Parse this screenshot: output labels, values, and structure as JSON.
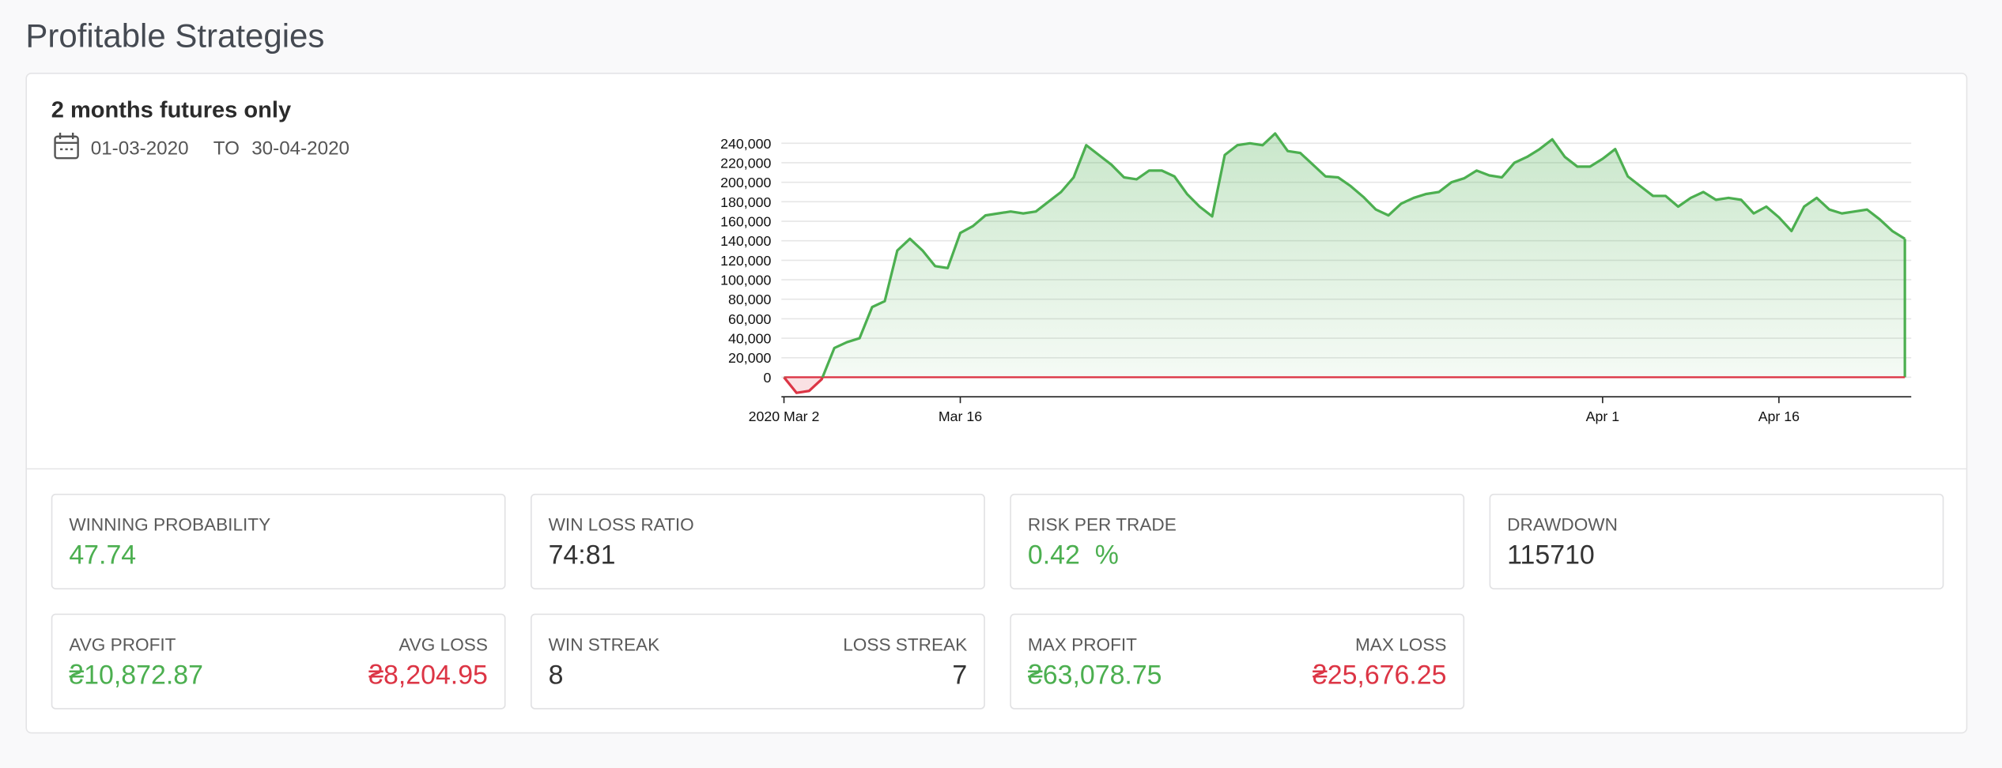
{
  "header": {
    "title": "Profitable Strategies"
  },
  "strategy": {
    "name": "2 months futures only",
    "date_from": "01-03-2020",
    "date_sep": "TO",
    "date_to": "30-04-2020"
  },
  "chart_data": {
    "type": "area",
    "categories": [
      "2020 Mar 2",
      null,
      null,
      null,
      null,
      null,
      null,
      null,
      null,
      null,
      null,
      null,
      null,
      null,
      "Mar 16",
      null,
      null,
      null,
      null,
      null,
      null,
      null,
      null,
      null,
      null,
      null,
      null,
      null,
      null,
      null,
      null,
      null,
      null,
      null,
      null,
      null,
      null,
      null,
      null,
      null,
      null,
      null,
      null,
      null,
      null,
      null,
      null,
      null,
      null,
      null,
      null,
      null,
      null,
      null,
      null,
      null,
      null,
      null,
      null,
      null,
      null,
      null,
      null,
      null,
      null,
      "Apr 1",
      null,
      null,
      null,
      null,
      null,
      null,
      null,
      null,
      null,
      null,
      null,
      null,
      null,
      "Apr 16",
      null,
      null,
      null,
      null,
      null,
      null,
      null,
      null,
      null,
      null
    ],
    "series": [
      {
        "color": "#4caf50",
        "negative_color": "#dc3545",
        "values": [
          0,
          -16000,
          -14000,
          -2000,
          30000,
          36000,
          40000,
          72000,
          78000,
          130000,
          142000,
          130000,
          114000,
          112000,
          148000,
          155000,
          166000,
          168000,
          170000,
          168000,
          170000,
          180000,
          190000,
          205000,
          238000,
          228000,
          218000,
          205000,
          203000,
          212000,
          212000,
          206000,
          188000,
          175000,
          165000,
          228000,
          238000,
          240000,
          238000,
          250000,
          232000,
          230000,
          218000,
          206000,
          205000,
          196000,
          185000,
          172000,
          166000,
          178000,
          184000,
          188000,
          190000,
          200000,
          204000,
          212000,
          207000,
          205000,
          220000,
          226000,
          234000,
          244000,
          226000,
          216000,
          216000,
          224000,
          234000,
          206000,
          196000,
          186000,
          186000,
          175000,
          184000,
          190000,
          182000,
          184000,
          182000,
          168000,
          175000,
          164000,
          150000,
          175000,
          184000,
          172000,
          168000,
          170000,
          172000,
          162000,
          150000,
          142000
        ]
      }
    ],
    "ylim": [
      -20000,
      260000
    ],
    "yticks": [
      0,
      {
        "value": 20000,
        "label": "20,000"
      },
      {
        "value": 40000,
        "label": "40,000"
      },
      {
        "value": 60000,
        "label": "60,000"
      },
      {
        "value": 80000,
        "label": "80,000"
      },
      {
        "value": 100000,
        "label": "100,000"
      },
      {
        "value": 120000,
        "label": "120,000"
      },
      {
        "value": 140000,
        "label": "140,000"
      },
      {
        "value": 160000,
        "label": "160,000"
      },
      {
        "value": 180000,
        "label": "180,000"
      },
      {
        "value": 200000,
        "label": "200,000"
      },
      {
        "value": 220000,
        "label": "220,000"
      },
      {
        "value": 240000,
        "label": "240,000"
      }
    ],
    "grid": true
  },
  "stats": [
    {
      "items": [
        {
          "label": "WINNING PROBABILITY",
          "value": "47.74",
          "color": "#4caf50"
        }
      ]
    },
    {
      "items": [
        {
          "label": "WIN LOSS RATIO",
          "value": "74:81",
          "color": "#333333"
        }
      ]
    },
    {
      "items": [
        {
          "label": "RISK PER TRADE",
          "value": "0.42  %",
          "color": "#4caf50"
        }
      ]
    },
    {
      "items": [
        {
          "label": "DRAWDOWN",
          "value": "115710",
          "color": "#333333"
        }
      ]
    },
    {
      "items": [
        {
          "label": "AVG PROFIT",
          "value": "₴10,872.87",
          "color": "#4caf50"
        },
        {
          "label": "AVG LOSS",
          "value": "₴8,204.95",
          "color": "#dc3545"
        }
      ]
    },
    {
      "items": [
        {
          "label": "WIN STREAK",
          "value": "8",
          "color": "#333333"
        },
        {
          "label": "LOSS STREAK",
          "value": "7",
          "color": "#333333"
        }
      ]
    },
    {
      "items": [
        {
          "label": "MAX PROFIT",
          "value": "₴63,078.75",
          "color": "#4caf50"
        },
        {
          "label": "MAX LOSS",
          "value": "₴25,676.25",
          "color": "#dc3545"
        }
      ]
    }
  ]
}
